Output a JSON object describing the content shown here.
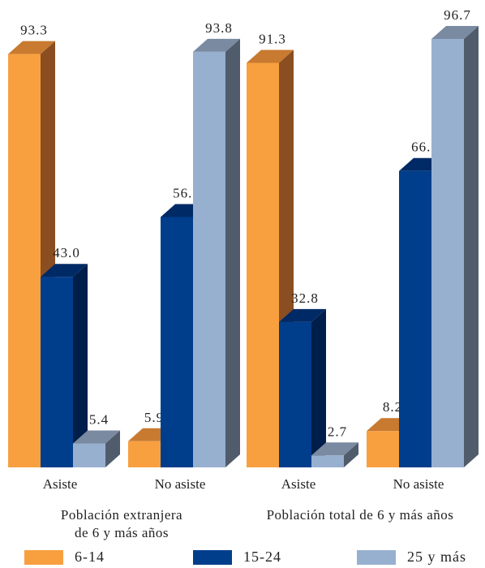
{
  "chart_data": {
    "type": "bar",
    "style": "3d",
    "ylim": [
      0,
      100
    ],
    "grid": false,
    "legend_position": "bottom",
    "panels": [
      {
        "name": "Población extranjera de 6 y más años",
        "name_lines": [
          "Población extranjera",
          "de 6 y más años"
        ],
        "categories": [
          "Asiste",
          "No asiste"
        ],
        "series": [
          {
            "name": "6-14",
            "values": [
              93.3,
              5.9
            ]
          },
          {
            "name": "15-24",
            "values": [
              43.0,
              56.5
            ]
          },
          {
            "name": "25 y más",
            "values": [
              5.4,
              93.8
            ]
          }
        ]
      },
      {
        "name": "Población total de 6 y más años",
        "name_lines": [
          "Población total de 6 y más años"
        ],
        "categories": [
          "Asiste",
          "No asiste"
        ],
        "series": [
          {
            "name": "6-14",
            "values": [
              91.3,
              8.2
            ]
          },
          {
            "name": "15-24",
            "values": [
              32.8,
              66.9
            ]
          },
          {
            "name": "25 y más",
            "values": [
              2.7,
              96.7
            ]
          }
        ]
      }
    ]
  },
  "legend": {
    "items": [
      {
        "label": "6-14",
        "color": "#f8a040",
        "side": "#8a4e20",
        "top": "#c87a30"
      },
      {
        "label": "15-24",
        "color": "#003e8c",
        "side": "#001e4a",
        "top": "#002a66"
      },
      {
        "label": "25 y más",
        "color": "#98b0d0",
        "side": "#505c6c",
        "top": "#7a8aa0"
      }
    ]
  }
}
